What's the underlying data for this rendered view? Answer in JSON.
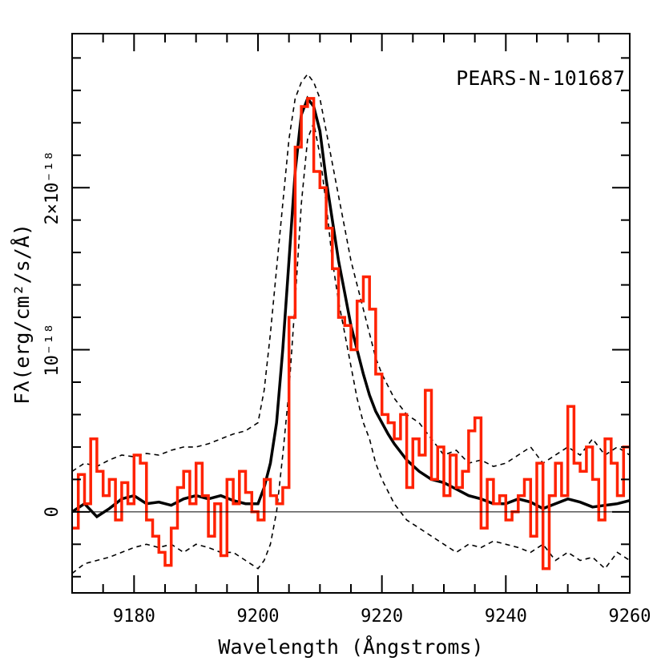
{
  "chart_data": {
    "type": "line",
    "annotation": "PEARS-N-101687",
    "xlabel": "Wavelength (Ångstroms)",
    "ylabel": "Fλ(erg/cm²/s/Å)",
    "xlim": [
      9170,
      9260
    ],
    "ylim": [
      -5e-19,
      2.95e-18
    ],
    "x_ticks": [
      9180,
      9200,
      9220,
      9240,
      9260
    ],
    "x_tick_labels": [
      "9180",
      "9200",
      "9220",
      "9240",
      "9260"
    ],
    "y_ticks": [
      0,
      1e-18,
      2e-18
    ],
    "y_tick_labels": [
      "0",
      "10⁻¹⁸",
      "2×10⁻¹⁸"
    ],
    "zero_line": true,
    "grid": false,
    "series": [
      {
        "style": "red-step",
        "color": "#ff2200",
        "x": [
          9170,
          9171,
          9172,
          9173,
          9174,
          9175,
          9176,
          9177,
          9178,
          9179,
          9180,
          9181,
          9182,
          9183,
          9184,
          9185,
          9186,
          9187,
          9188,
          9189,
          9190,
          9191,
          9192,
          9193,
          9194,
          9195,
          9196,
          9197,
          9198,
          9199,
          9200,
          9201,
          9202,
          9203,
          9204,
          9205,
          9206,
          9207,
          9208,
          9209,
          9210,
          9211,
          9212,
          9213,
          9214,
          9215,
          9216,
          9217,
          9218,
          9219,
          9220,
          9221,
          9222,
          9223,
          9224,
          9225,
          9226,
          9227,
          9228,
          9229,
          9230,
          9231,
          9232,
          9233,
          9234,
          9235,
          9236,
          9237,
          9238,
          9239,
          9240,
          9241,
          9242,
          9243,
          9244,
          9245,
          9246,
          9247,
          9248,
          9249,
          9250,
          9251,
          9252,
          9253,
          9254,
          9255,
          9256,
          9257,
          9258,
          9259
        ],
        "y": [
          -1e-19,
          2.3e-19,
          5e-20,
          4.5e-19,
          2.5e-19,
          1e-19,
          2e-19,
          -5e-20,
          1.8e-19,
          5e-20,
          3.5e-19,
          3e-19,
          -5e-20,
          -1.5e-19,
          -2.5e-19,
          -3.3e-19,
          -1e-19,
          1.5e-19,
          2.5e-19,
          5e-20,
          3e-19,
          1e-19,
          -1.5e-19,
          5e-20,
          -2.7e-19,
          2e-19,
          5e-20,
          2.5e-19,
          1.2e-19,
          0.0,
          -5e-20,
          2e-19,
          1e-19,
          5e-20,
          1.5e-19,
          1.2e-18,
          2.25e-18,
          2.5e-18,
          2.55e-18,
          2.1e-18,
          2e-18,
          1.75e-18,
          1.5e-18,
          1.2e-18,
          1.15e-18,
          1e-18,
          1.3e-18,
          1.45e-18,
          1.25e-18,
          8.5e-19,
          6e-19,
          5.5e-19,
          4.5e-19,
          6e-19,
          1.5e-19,
          4.5e-19,
          3.5e-19,
          7.5e-19,
          2e-19,
          4e-19,
          1e-19,
          3.5e-19,
          1.5e-19,
          2.5e-19,
          5e-19,
          5.8e-19,
          -1e-19,
          2e-19,
          5e-20,
          1e-19,
          -5e-20,
          0.0,
          1e-19,
          2e-19,
          -1.5e-19,
          3e-19,
          -3.5e-19,
          1e-19,
          3e-19,
          1e-19,
          6.5e-19,
          3e-19,
          2.5e-19,
          4e-19,
          2e-19,
          -5e-20,
          4.5e-19,
          3e-19,
          1e-19,
          4e-19
        ]
      },
      {
        "style": "black-solid",
        "color": "#000000",
        "x": [
          9170,
          9172,
          9174,
          9176,
          9178,
          9180,
          9182,
          9184,
          9186,
          9188,
          9190,
          9192,
          9194,
          9196,
          9198,
          9200,
          9201,
          9202,
          9203,
          9204,
          9205,
          9206,
          9207,
          9208,
          9209,
          9210,
          9211,
          9212,
          9213,
          9214,
          9215,
          9216,
          9217,
          9218,
          9219,
          9220,
          9221,
          9222,
          9224,
          9226,
          9228,
          9230,
          9232,
          9234,
          9236,
          9238,
          9240,
          9242,
          9244,
          9246,
          9248,
          9250,
          9252,
          9254,
          9256,
          9258,
          9260
        ],
        "y": [
          0.0,
          5e-20,
          -3e-20,
          2e-20,
          8e-20,
          1e-19,
          5e-20,
          6e-20,
          4e-20,
          8e-20,
          1e-19,
          8e-20,
          1e-19,
          7e-20,
          5e-20,
          5e-20,
          1.5e-19,
          3e-19,
          5.5e-19,
          1e-18,
          1.55e-18,
          2.1e-18,
          2.45e-18,
          2.55e-18,
          2.5e-18,
          2.35e-18,
          2.05e-18,
          1.8e-18,
          1.55e-18,
          1.35e-18,
          1.15e-18,
          1e-18,
          8.5e-19,
          7.2e-19,
          6.2e-19,
          5.5e-19,
          4.8e-19,
          4.2e-19,
          3.2e-19,
          2.5e-19,
          2e-19,
          1.8e-19,
          1.4e-19,
          1e-19,
          8e-20,
          5e-20,
          5e-20,
          8e-20,
          6e-20,
          2e-20,
          5e-20,
          8e-20,
          6e-20,
          3e-20,
          4e-20,
          5e-20,
          7e-20
        ]
      },
      {
        "style": "dash-upper",
        "color": "#000000",
        "x": [
          9170,
          9172,
          9174,
          9176,
          9178,
          9180,
          9182,
          9184,
          9186,
          9188,
          9190,
          9192,
          9194,
          9196,
          9198,
          9200,
          9201,
          9202,
          9203,
          9204,
          9205,
          9206,
          9207,
          9208,
          9209,
          9210,
          9211,
          9212,
          9213,
          9214,
          9215,
          9216,
          9217,
          9218,
          9219,
          9220,
          9222,
          9224,
          9226,
          9228,
          9230,
          9232,
          9234,
          9236,
          9238,
          9240,
          9242,
          9244,
          9246,
          9248,
          9250,
          9252,
          9254,
          9256,
          9258,
          9260
        ],
        "y": [
          2.5e-19,
          3e-19,
          2.8e-19,
          3.2e-19,
          3.5e-19,
          3.4e-19,
          3.6e-19,
          3.5e-19,
          3.8e-19,
          4e-19,
          4e-19,
          4.2e-19,
          4.5e-19,
          4.8e-19,
          5e-19,
          5.5e-19,
          7.5e-19,
          1.1e-18,
          1.5e-18,
          1.9e-18,
          2.3e-18,
          2.55e-18,
          2.65e-18,
          2.7e-18,
          2.65e-18,
          2.55e-18,
          2.35e-18,
          2.15e-18,
          1.95e-18,
          1.75e-18,
          1.55e-18,
          1.4e-18,
          1.25e-18,
          1.1e-18,
          9.5e-19,
          8.5e-19,
          7e-19,
          6e-19,
          5.5e-19,
          4.5e-19,
          3.5e-19,
          3.8e-19,
          3e-19,
          3.2e-19,
          2.8e-19,
          3e-19,
          3.5e-19,
          4e-19,
          3e-19,
          3.5e-19,
          4e-19,
          3.5e-19,
          4.5e-19,
          3.5e-19,
          4e-19,
          3.5e-19
        ]
      },
      {
        "style": "dash-lower",
        "color": "#000000",
        "x": [
          9170,
          9172,
          9174,
          9176,
          9178,
          9180,
          9182,
          9184,
          9186,
          9188,
          9190,
          9192,
          9194,
          9196,
          9198,
          9200,
          9201,
          9202,
          9203,
          9204,
          9205,
          9206,
          9207,
          9208,
          9209,
          9210,
          9211,
          9212,
          9213,
          9214,
          9215,
          9216,
          9217,
          9218,
          9219,
          9220,
          9222,
          9224,
          9226,
          9228,
          9230,
          9232,
          9234,
          9236,
          9238,
          9240,
          9242,
          9244,
          9246,
          9248,
          9250,
          9252,
          9254,
          9256,
          9258,
          9260
        ],
        "y": [
          -3.8e-19,
          -3.2e-19,
          -3e-19,
          -2.8e-19,
          -2.5e-19,
          -2.2e-19,
          -2e-19,
          -2.2e-19,
          -2e-19,
          -2.5e-19,
          -2e-19,
          -2.2e-19,
          -2.5e-19,
          -2.5e-19,
          -3e-19,
          -3.5e-19,
          -3e-19,
          -2e-19,
          0.0,
          3.5e-19,
          7.5e-19,
          1.3e-18,
          1.9e-18,
          2.3e-18,
          2.4e-18,
          2.2e-18,
          1.9e-18,
          1.55e-18,
          1.3e-18,
          1.1e-18,
          9e-19,
          7e-19,
          5.5e-19,
          4.5e-19,
          3e-19,
          2e-19,
          5e-20,
          -5e-20,
          -1e-19,
          -1.5e-19,
          -2e-19,
          -2.5e-19,
          -2e-19,
          -2.2e-19,
          -1.8e-19,
          -2e-19,
          -2.2e-19,
          -2.5e-19,
          -2e-19,
          -3e-19,
          -2.5e-19,
          -3e-19,
          -2.8e-19,
          -3.5e-19,
          -2.5e-19,
          -3e-19
        ]
      }
    ]
  }
}
